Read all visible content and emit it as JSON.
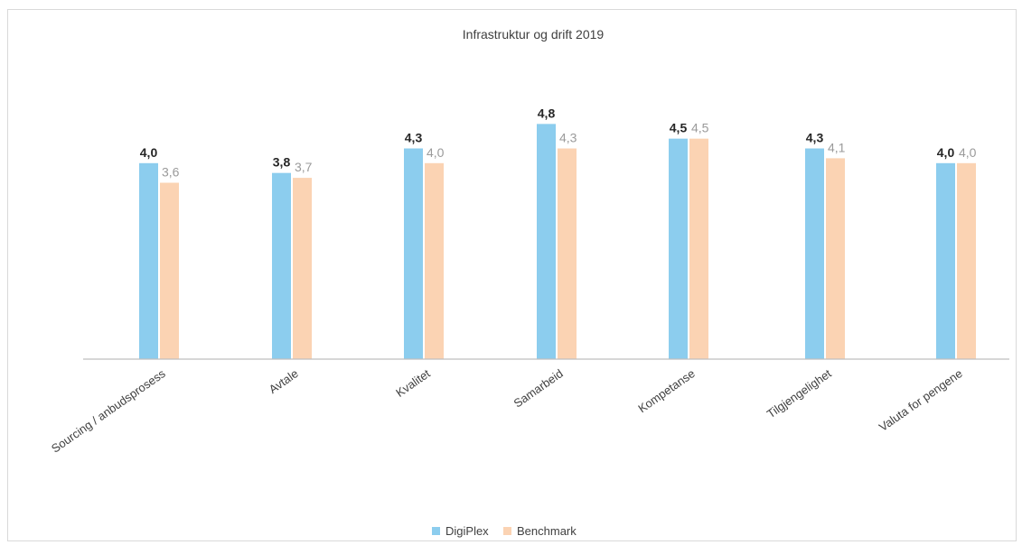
{
  "chart_data": {
    "type": "bar",
    "title": "Infrastruktur og drift 2019",
    "xlabel": "",
    "ylabel": "",
    "ylim": [
      0,
      5
    ],
    "grid": false,
    "legend_position": "bottom",
    "categories": [
      "Sourcing / anbudsprosess",
      "Avtale",
      "Kvalitet",
      "Samarbeid",
      "Kompetanse",
      "Tilgjengelighet",
      "Valuta for pengene"
    ],
    "series": [
      {
        "name": "DigiPlex",
        "values": [
          4.0,
          3.8,
          4.3,
          4.8,
          4.5,
          4.3,
          4.0
        ],
        "labels": [
          "4,0",
          "3,8",
          "4,3",
          "4,8",
          "4,5",
          "4,3",
          "4,0"
        ],
        "color": "#8ccdee"
      },
      {
        "name": "Benchmark",
        "values": [
          3.6,
          3.7,
          4.0,
          4.3,
          4.5,
          4.1,
          4.0
        ],
        "labels": [
          "3,6",
          "3,7",
          "4,0",
          "4,3",
          "4,5",
          "4,1",
          "4,0"
        ],
        "color": "#fbd3b3"
      }
    ]
  }
}
